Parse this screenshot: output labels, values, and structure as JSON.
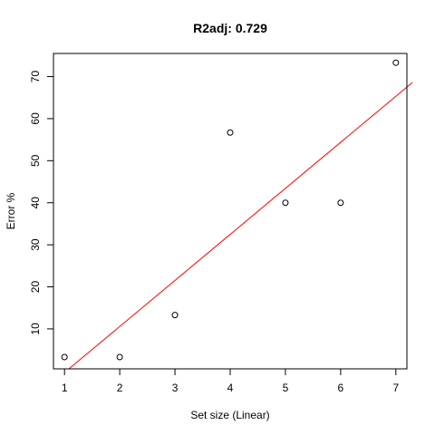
{
  "chart_data": {
    "type": "scatter",
    "title": "R2adj:  0.729",
    "xlabel": "Set size (Linear)",
    "ylabel": "Error %",
    "xlim": [
      0.8,
      7.2
    ],
    "ylim": [
      0.5,
      75.5
    ],
    "x_ticks": [
      1,
      2,
      3,
      4,
      5,
      6,
      7
    ],
    "y_ticks": [
      10,
      20,
      30,
      40,
      50,
      60,
      70
    ],
    "grid": false,
    "legend": "none",
    "points": {
      "x": [
        1,
        2,
        3,
        4,
        5,
        6,
        7
      ],
      "y": [
        3.3,
        3.3,
        13.3,
        56.7,
        40,
        40,
        73.3
      ]
    },
    "fit_line": {
      "color": "#ff0000",
      "points": [
        [
          1.08,
          0.5
        ],
        [
          7.3,
          68.6
        ]
      ]
    }
  }
}
